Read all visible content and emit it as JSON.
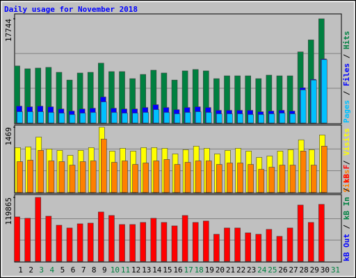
{
  "chart_data": [
    {
      "type": "bar",
      "title": "Daily usage for November 2018",
      "legend_separator": " / ",
      "ylim": [
        0,
        17744
      ],
      "yticks": [
        17744
      ],
      "series": [
        {
          "name": "Hits",
          "color": "#008040",
          "values": [
            9711,
            9232,
            9352,
            9472,
            8632,
            7313,
            8512,
            8632,
            10191,
            8752,
            8752,
            7553,
            8272,
            8992,
            8512,
            7313,
            8872,
            9112,
            8872,
            7553,
            8033,
            8033,
            8033,
            7553,
            8153,
            8033,
            8033,
            12109,
            14147,
            17744,
            null
          ]
        },
        {
          "name": "Files",
          "color": "#0000ff",
          "values": [
            2877,
            2757,
            2877,
            2757,
            2398,
            2038,
            2398,
            2518,
            4436,
            2518,
            2398,
            2398,
            2638,
            3117,
            2638,
            2278,
            2638,
            2757,
            2638,
            2158,
            2158,
            2158,
            2158,
            1918,
            2038,
            2158,
            2038,
            5995,
            7433,
            10910,
            null
          ]
        },
        {
          "name": "Pages",
          "color": "#00c0ff",
          "values": [
            1918,
            1918,
            1918,
            1798,
            1678,
            1439,
            1678,
            1798,
            3597,
            1798,
            1678,
            1678,
            1798,
            2278,
            1798,
            1559,
            1798,
            1918,
            1798,
            1559,
            1559,
            1559,
            1439,
            1439,
            1559,
            1678,
            1559,
            5635,
            7313,
            10790,
            null
          ]
        }
      ]
    },
    {
      "type": "bar",
      "legend_separator": " / ",
      "ylim": [
        0,
        1469
      ],
      "yticks": [
        1469
      ],
      "series": [
        {
          "name": "Visits",
          "color": "#ffff00",
          "values": [
            1011,
            1027,
            1248,
            979,
            948,
            837,
            948,
            1011,
            1469,
            932,
            995,
            932,
            1011,
            1011,
            995,
            869,
            964,
            1043,
            995,
            869,
            948,
            995,
            932,
            790,
            821,
            932,
            964,
            1185,
            964,
            1295,
            null
          ]
        },
        {
          "name": "Sites",
          "color": "#ff8000",
          "values": [
            695,
            727,
            948,
            711,
            695,
            616,
            695,
            711,
            1201,
            679,
            711,
            632,
            664,
            711,
            743,
            632,
            679,
            711,
            711,
            632,
            664,
            664,
            632,
            521,
            569,
            616,
            616,
            932,
            616,
            1043,
            null
          ]
        }
      ]
    },
    {
      "type": "bar",
      "legend_separator": " / ",
      "ylim": [
        0,
        119865
      ],
      "yticks": [
        119865
      ],
      "categories": [
        "1",
        "2",
        "3",
        "4",
        "5",
        "6",
        "7",
        "8",
        "9",
        "10",
        "11",
        "12",
        "13",
        "14",
        "15",
        "16",
        "17",
        "18",
        "19",
        "20",
        "21",
        "22",
        "23",
        "24",
        "25",
        "26",
        "27",
        "28",
        "29",
        "30",
        "31"
      ],
      "category_colors": [
        "#000000",
        "#000000",
        "#008040",
        "#008040",
        "#000000",
        "#000000",
        "#000000",
        "#000000",
        "#000000",
        "#008040",
        "#008040",
        "#000000",
        "#000000",
        "#000000",
        "#000000",
        "#000000",
        "#008040",
        "#008040",
        "#000000",
        "#000000",
        "#000000",
        "#000000",
        "#000000",
        "#008040",
        "#008040",
        "#000000",
        "#000000",
        "#000000",
        "#000000",
        "#000000",
        "#008040"
      ],
      "series": [
        {
          "name": "kB F",
          "color": "#ff0000",
          "values": [
            83392,
            80785,
            119865,
            84695,
            67756,
            62544,
            70362,
            71665,
            92513,
            85998,
            69059,
            69059,
            72968,
            80785,
            72968,
            66453,
            85998,
            72968,
            75574,
            50817,
            62544,
            62544,
            53423,
            50817,
            59937,
            46908,
            62544,
            105536,
            72968,
            106839,
            null
          ]
        },
        {
          "name": "kB In",
          "color": "#008040",
          "values": [
            null,
            null,
            null,
            null,
            null,
            null,
            null,
            null,
            null,
            null,
            null,
            null,
            null,
            null,
            null,
            null,
            null,
            null,
            null,
            null,
            null,
            null,
            null,
            null,
            null,
            null,
            null,
            null,
            null,
            null,
            null
          ]
        },
        {
          "name": "kB Out",
          "color": "#0000ff",
          "values": [
            null,
            null,
            null,
            null,
            null,
            null,
            null,
            null,
            null,
            null,
            null,
            null,
            null,
            null,
            null,
            null,
            null,
            null,
            null,
            null,
            null,
            null,
            null,
            null,
            null,
            null,
            null,
            null,
            null,
            null,
            null
          ]
        }
      ]
    }
  ]
}
